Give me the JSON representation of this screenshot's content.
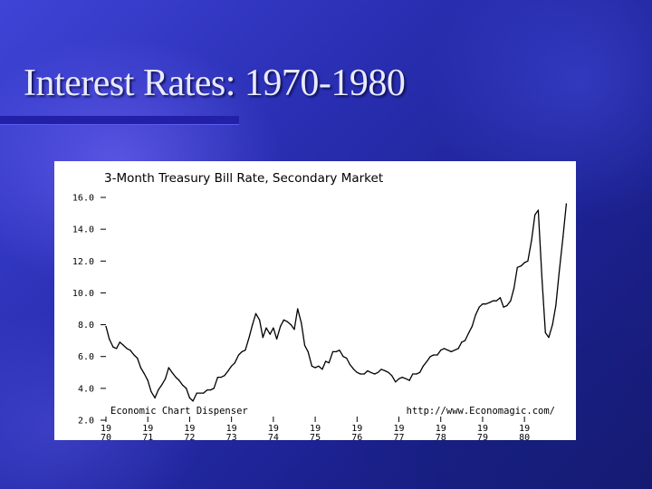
{
  "slide": {
    "title": "Interest Rates: 1970-1980"
  },
  "colors": {
    "accent_bar": "#2320a8",
    "plot_line": "#000000",
    "panel": "#ffffff"
  },
  "chart_data": {
    "type": "line",
    "title": "3-Month Treasury Bill Rate, Secondary Market",
    "xlabel": "",
    "ylabel": "",
    "ylim": [
      2.0,
      16.0
    ],
    "xlim": [
      1970.0,
      1981.1
    ],
    "y_ticks": [
      {
        "value": 16.0,
        "label": "16.0"
      },
      {
        "value": 14.0,
        "label": "14.0"
      },
      {
        "value": 12.0,
        "label": "12.0"
      },
      {
        "value": 10.0,
        "label": "10.0"
      },
      {
        "value": 8.0,
        "label": "8.0"
      },
      {
        "value": 6.0,
        "label": "6.0"
      },
      {
        "value": 4.0,
        "label": "4.0"
      },
      {
        "value": 2.0,
        "label": "2.0"
      }
    ],
    "x_ticks": [
      {
        "value": 1970,
        "line1": "19",
        "line2": "70"
      },
      {
        "value": 1971,
        "line1": "19",
        "line2": "71"
      },
      {
        "value": 1972,
        "line1": "19",
        "line2": "72"
      },
      {
        "value": 1973,
        "line1": "19",
        "line2": "73"
      },
      {
        "value": 1974,
        "line1": "19",
        "line2": "74"
      },
      {
        "value": 1975,
        "line1": "19",
        "line2": "75"
      },
      {
        "value": 1976,
        "line1": "19",
        "line2": "76"
      },
      {
        "value": 1977,
        "line1": "19",
        "line2": "77"
      },
      {
        "value": 1978,
        "line1": "19",
        "line2": "78"
      },
      {
        "value": 1979,
        "line1": "19",
        "line2": "79"
      },
      {
        "value": 1980,
        "line1": "19",
        "line2": "80"
      }
    ],
    "annotations": {
      "left": "Economic Chart Dispenser",
      "right": "http://www.Economagic.com/"
    },
    "grid": false,
    "series": [
      {
        "x": [
          1970.0,
          1970.08,
          1970.17,
          1970.25,
          1970.33,
          1970.42,
          1970.5,
          1970.58,
          1970.67,
          1970.75,
          1970.83,
          1970.92,
          1971.0,
          1971.08,
          1971.17,
          1971.25,
          1971.33,
          1971.42,
          1971.5,
          1971.58,
          1971.67,
          1971.75,
          1971.83,
          1971.92,
          1972.0,
          1972.08,
          1972.17,
          1972.25,
          1972.33,
          1972.42,
          1972.5,
          1972.58,
          1972.67,
          1972.75,
          1972.83,
          1972.92,
          1973.0,
          1973.08,
          1973.17,
          1973.25,
          1973.33,
          1973.42,
          1973.5,
          1973.58,
          1973.67,
          1973.75,
          1973.83,
          1973.92,
          1974.0,
          1974.08,
          1974.17,
          1974.25,
          1974.33,
          1974.42,
          1974.5,
          1974.58,
          1974.67,
          1974.75,
          1974.83,
          1974.92,
          1975.0,
          1975.08,
          1975.17,
          1975.25,
          1975.33,
          1975.42,
          1975.5,
          1975.58,
          1975.67,
          1975.75,
          1975.83,
          1975.92,
          1976.0,
          1976.08,
          1976.17,
          1976.25,
          1976.33,
          1976.42,
          1976.5,
          1976.58,
          1976.67,
          1976.75,
          1976.83,
          1976.92,
          1977.0,
          1977.08,
          1977.17,
          1977.25,
          1977.33,
          1977.42,
          1977.5,
          1977.58,
          1977.67,
          1977.75,
          1977.83,
          1977.92,
          1978.0,
          1978.08,
          1978.17,
          1978.25,
          1978.33,
          1978.42,
          1978.5,
          1978.58,
          1978.67,
          1978.75,
          1978.83,
          1978.92,
          1979.0,
          1979.08,
          1979.17,
          1979.25,
          1979.33,
          1979.42,
          1979.5,
          1979.58,
          1979.67,
          1979.75,
          1979.83,
          1979.92,
          1980.0,
          1980.08,
          1980.17,
          1980.25,
          1980.33,
          1980.42,
          1980.5,
          1980.58,
          1980.67,
          1980.75,
          1980.83,
          1980.92,
          1981.0
        ],
        "values": [
          7.9,
          7.1,
          6.6,
          6.5,
          6.9,
          6.7,
          6.5,
          6.4,
          6.1,
          5.9,
          5.3,
          4.9,
          4.5,
          3.8,
          3.4,
          3.9,
          4.2,
          4.6,
          5.3,
          5.0,
          4.7,
          4.5,
          4.2,
          4.0,
          3.4,
          3.2,
          3.7,
          3.7,
          3.7,
          3.9,
          3.9,
          4.0,
          4.7,
          4.7,
          4.8,
          5.1,
          5.4,
          5.6,
          6.1,
          6.3,
          6.4,
          7.2,
          8.0,
          8.7,
          8.3,
          7.2,
          7.8,
          7.4,
          7.8,
          7.1,
          7.9,
          8.3,
          8.2,
          8.0,
          7.7,
          9.0,
          8.1,
          6.7,
          6.3,
          5.4,
          5.3,
          5.4,
          5.2,
          5.7,
          5.6,
          6.3,
          6.3,
          6.4,
          6.0,
          5.9,
          5.5,
          5.2,
          5.0,
          4.9,
          4.9,
          5.1,
          5.0,
          4.9,
          5.0,
          5.2,
          5.1,
          5.0,
          4.8,
          4.4,
          4.6,
          4.7,
          4.6,
          4.5,
          4.9,
          4.9,
          5.0,
          5.4,
          5.7,
          6.0,
          6.1,
          6.1,
          6.4,
          6.5,
          6.4,
          6.3,
          6.4,
          6.5,
          6.9,
          7.0,
          7.5,
          7.9,
          8.6,
          9.1,
          9.3,
          9.3,
          9.4,
          9.5,
          9.5,
          9.7,
          9.1,
          9.2,
          9.5,
          10.3,
          11.6,
          11.7,
          11.9,
          12.0,
          13.3,
          14.9,
          15.2,
          10.8,
          7.5,
          7.2,
          8.0,
          9.2,
          11.3,
          13.5,
          15.6
        ]
      }
    ]
  }
}
